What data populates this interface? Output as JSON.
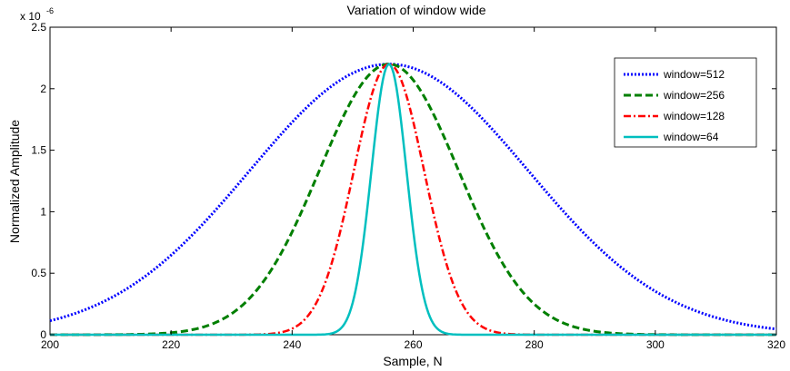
{
  "chart_data": {
    "type": "line",
    "title": "Variation of window wide",
    "xlabel": "Sample, N",
    "ylabel": "Normalized Amplitude",
    "y_exponent_label": "x 10",
    "y_exponent_power": "-6",
    "xlim": [
      200,
      320
    ],
    "ylim": [
      0,
      2.5
    ],
    "xticks": [
      200,
      220,
      240,
      260,
      280,
      300,
      320
    ],
    "yticks": [
      0,
      0.5,
      1,
      1.5,
      2,
      2.5
    ],
    "xtick_labels": [
      "200",
      "220",
      "240",
      "260",
      "280",
      "300",
      "320"
    ],
    "ytick_labels": [
      "0",
      "0.5",
      "1",
      "1.5",
      "2",
      "2.5"
    ],
    "grid": false,
    "legend_position": "top-right",
    "peak_x": 256,
    "peak_y": 2.2,
    "series": [
      {
        "name": "window=512",
        "color": "#0000ff",
        "style": "dotted",
        "sigma": 23
      },
      {
        "name": "window=256",
        "color": "#007f00",
        "style": "dashed",
        "sigma": 11.5
      },
      {
        "name": "window=128",
        "color": "#ff0000",
        "style": "dashdot",
        "sigma": 5.8
      },
      {
        "name": "window=64",
        "color": "#00bfbf",
        "style": "solid",
        "sigma": 2.9
      }
    ]
  }
}
